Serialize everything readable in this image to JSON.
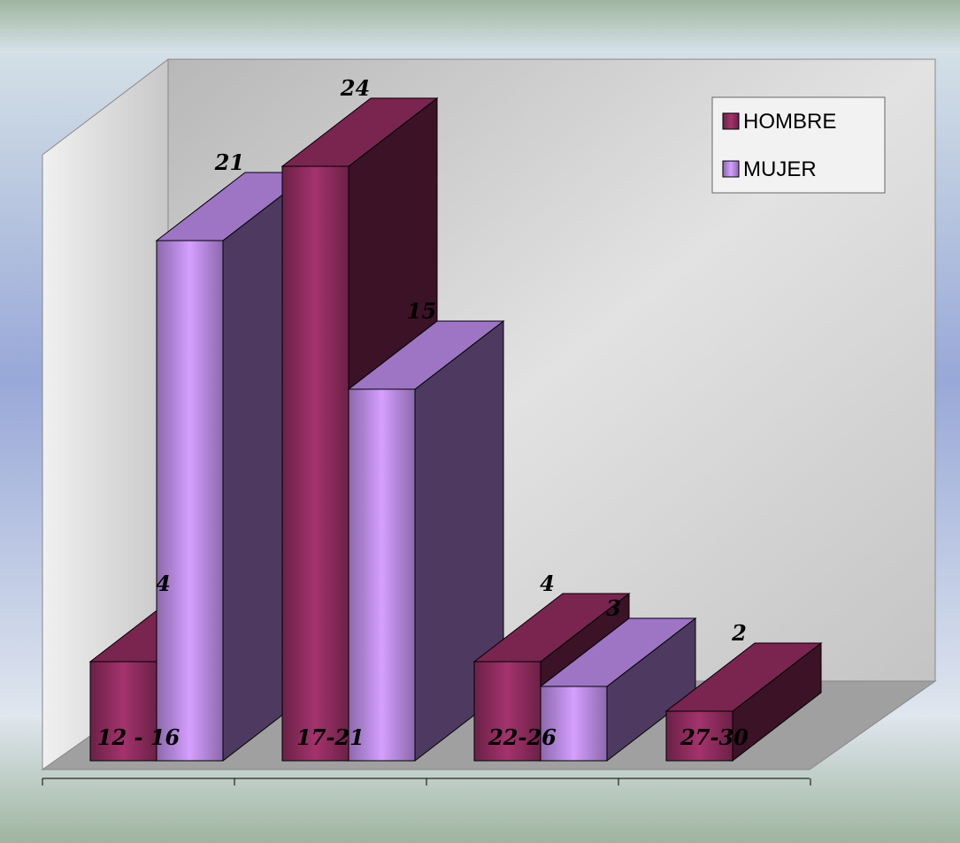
{
  "chart_data": {
    "type": "bar3d",
    "categories": [
      "12 - 16",
      "17-21",
      "22-26",
      "27-30"
    ],
    "series": [
      {
        "name": "HOMBRE",
        "color": "#8e2c5e",
        "values": [
          4,
          24,
          4,
          2
        ]
      },
      {
        "name": "MUJER",
        "color": "#b98ae6",
        "values": [
          21,
          15,
          3,
          null
        ]
      }
    ],
    "legend": "top-right"
  }
}
